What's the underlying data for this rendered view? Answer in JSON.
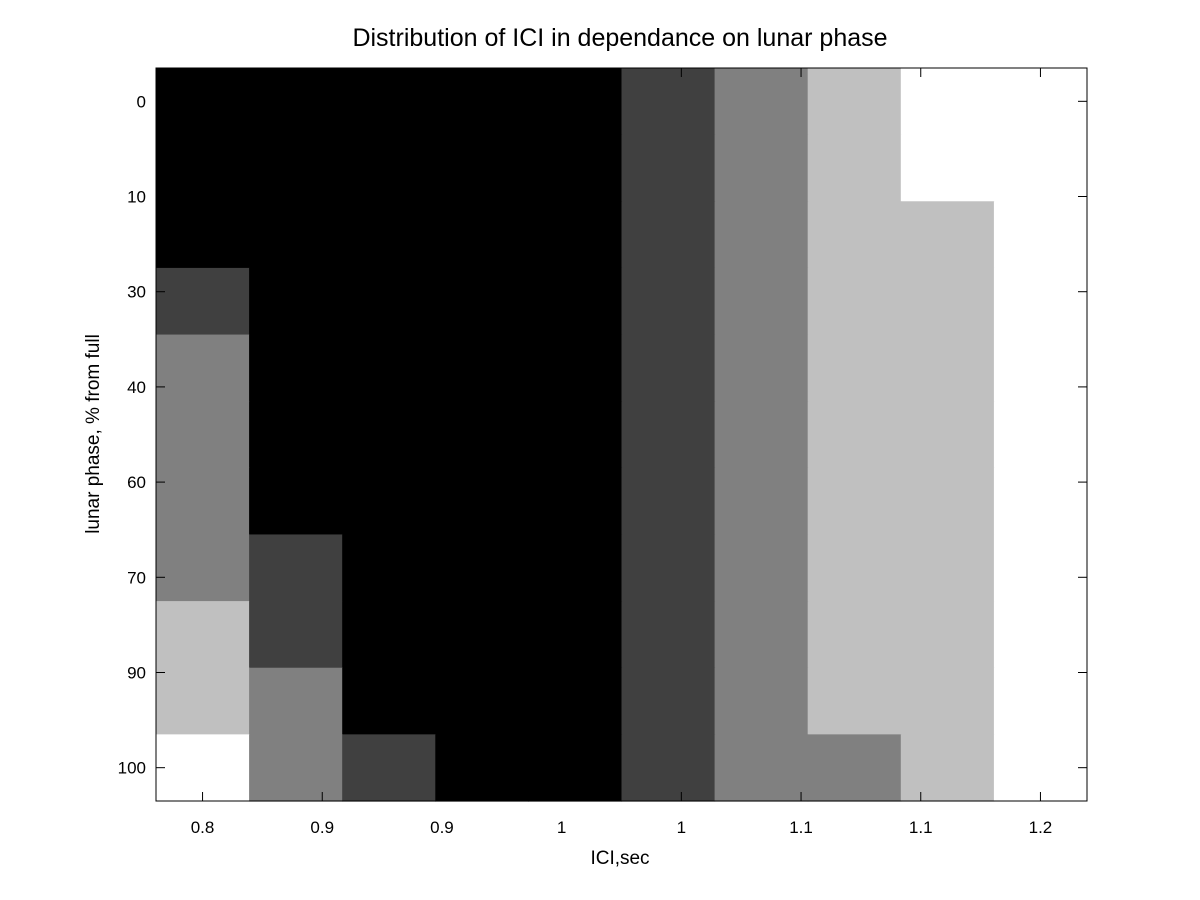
{
  "chart_data": {
    "type": "heatmap",
    "title": "Distribution of ICI in dependance on lunar phase",
    "xlabel": "ICI,sec",
    "ylabel": "lunar phase, % from full",
    "x_tick_labels": [
      "0.8",
      "0.9",
      "0.9",
      "1",
      "1",
      "1.1",
      "1.1",
      "1.2"
    ],
    "y_tick_labels": [
      "0",
      "10",
      "30",
      "40",
      "60",
      "70",
      "90",
      "100"
    ],
    "columns": 10,
    "rows": 11,
    "colorscale": [
      "#000000",
      "#404040",
      "#808080",
      "#c0c0c0",
      "#ffffff"
    ],
    "cell_levels": [
      [
        0,
        0,
        0,
        0,
        0,
        1,
        2,
        3,
        4,
        4
      ],
      [
        0,
        0,
        0,
        0,
        0,
        1,
        2,
        3,
        4,
        4
      ],
      [
        0,
        0,
        0,
        0,
        0,
        1,
        2,
        3,
        3,
        4
      ],
      [
        1,
        0,
        0,
        0,
        0,
        1,
        2,
        3,
        3,
        4
      ],
      [
        2,
        0,
        0,
        0,
        0,
        1,
        2,
        3,
        3,
        4
      ],
      [
        2,
        0,
        0,
        0,
        0,
        1,
        2,
        3,
        3,
        4
      ],
      [
        2,
        0,
        0,
        0,
        0,
        1,
        2,
        3,
        3,
        4
      ],
      [
        2,
        1,
        0,
        0,
        0,
        1,
        2,
        3,
        3,
        4
      ],
      [
        3,
        1,
        0,
        0,
        0,
        1,
        2,
        3,
        3,
        4
      ],
      [
        3,
        2,
        0,
        0,
        0,
        1,
        2,
        3,
        3,
        4
      ],
      [
        4,
        2,
        1,
        0,
        0,
        1,
        2,
        2,
        3,
        4
      ]
    ],
    "grid": false,
    "legend": "none"
  }
}
